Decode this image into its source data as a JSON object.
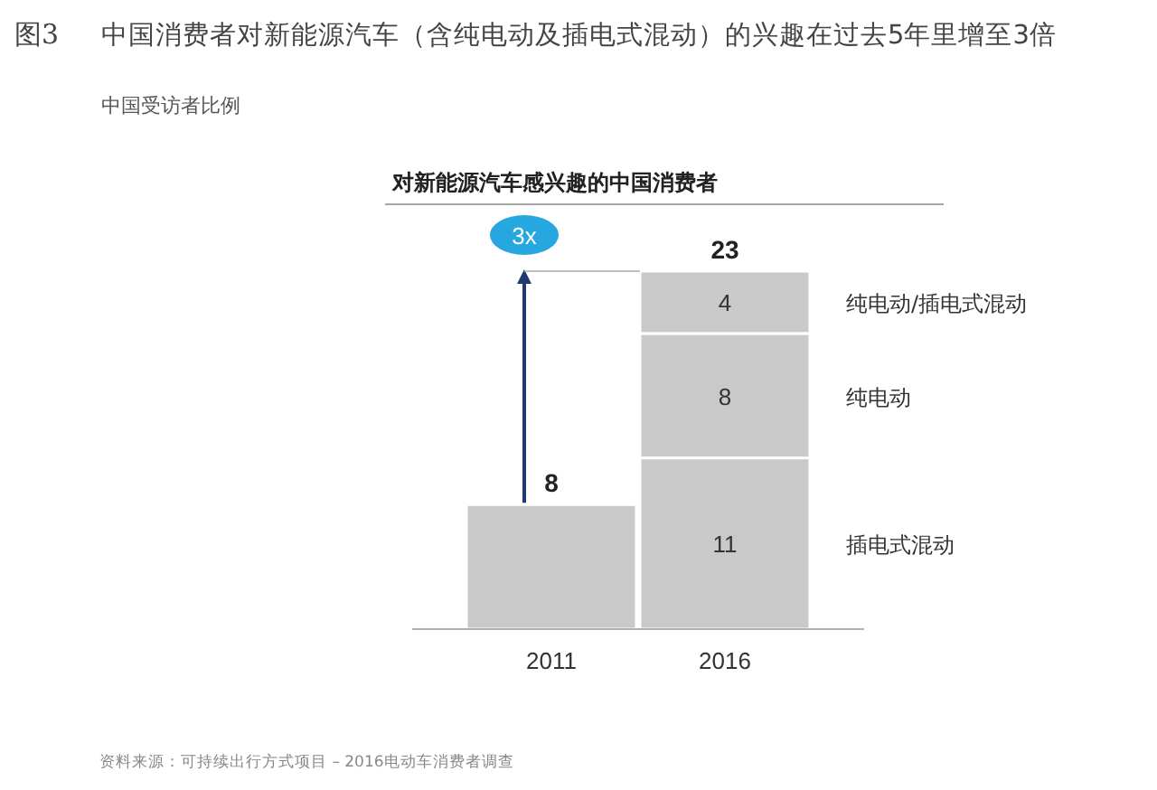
{
  "chart_data": {
    "type": "bar",
    "stacked": true,
    "title": "中国消费者对新能源汽车（含纯电动及插电式混动）的兴趣在过去5年里增至3倍",
    "subtitle": "中国受访者比例",
    "annotations": [
      "图3",
      "对新能源汽车感兴趣的中国消费者",
      "资料来源：可持续出行方式项目 – 2016电动车消费者调查",
      "3x"
    ],
    "categories": [
      "2011",
      "2016"
    ],
    "series": [
      {
        "color": "#c9c9c9",
        "values": [
          8,
          null
        ],
        "value_labels": [
          null,
          null
        ]
      },
      {
        "name": "插电式混动",
        "color": "#c9c9c9",
        "values": [
          null,
          11
        ],
        "value_labels": [
          null,
          "11"
        ]
      },
      {
        "name": "纯电动",
        "color": "#c9c9c9",
        "values": [
          null,
          8
        ],
        "value_labels": [
          null,
          "8"
        ]
      },
      {
        "name": "纯电动/插电式混动",
        "color": "#c9c9c9",
        "values": [
          null,
          4
        ],
        "value_labels": [
          null,
          "4"
        ]
      }
    ],
    "totals": [
      "8",
      "23"
    ],
    "tick_labels": "x",
    "legend": false
  }
}
